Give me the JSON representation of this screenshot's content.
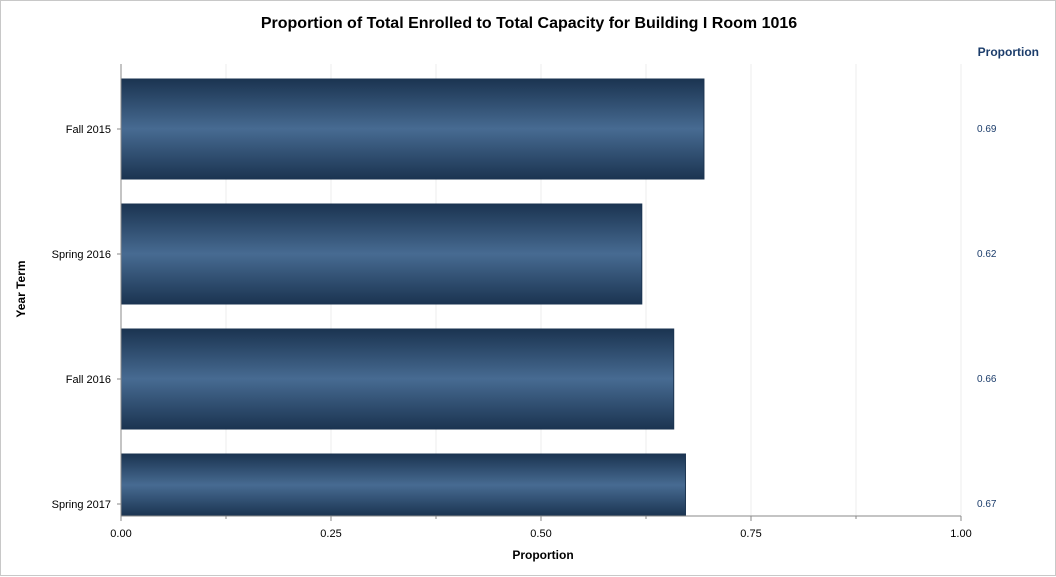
{
  "chart_data": {
    "type": "bar",
    "orientation": "horizontal",
    "title": "Proportion of Total Enrolled to Total Capacity for Building I Room 1016",
    "xlabel": "Proportion",
    "ylabel": "Year Term",
    "categories": [
      "Fall 2015",
      "Spring 2016",
      "Fall 2016",
      "Spring 2017"
    ],
    "values": [
      0.694,
      0.62,
      0.658,
      0.672
    ],
    "value_labels": [
      "0.69",
      "0.62",
      "0.66",
      "0.67"
    ],
    "side_column_header": "Proportion",
    "xlim": [
      0,
      1.0
    ],
    "x_ticks": [
      0,
      0.25,
      0.5,
      0.75,
      1.0
    ],
    "x_tick_labels": [
      "0.00",
      "0.25",
      "0.50",
      "0.75",
      "1.00"
    ],
    "grid": true,
    "legend": "none",
    "colors": {
      "bar_dark": "#1b3451",
      "bar_light": "#476b92",
      "side_text": "#1c3d6b",
      "axis": "#8a8a8a",
      "grid": "#ececec"
    }
  }
}
